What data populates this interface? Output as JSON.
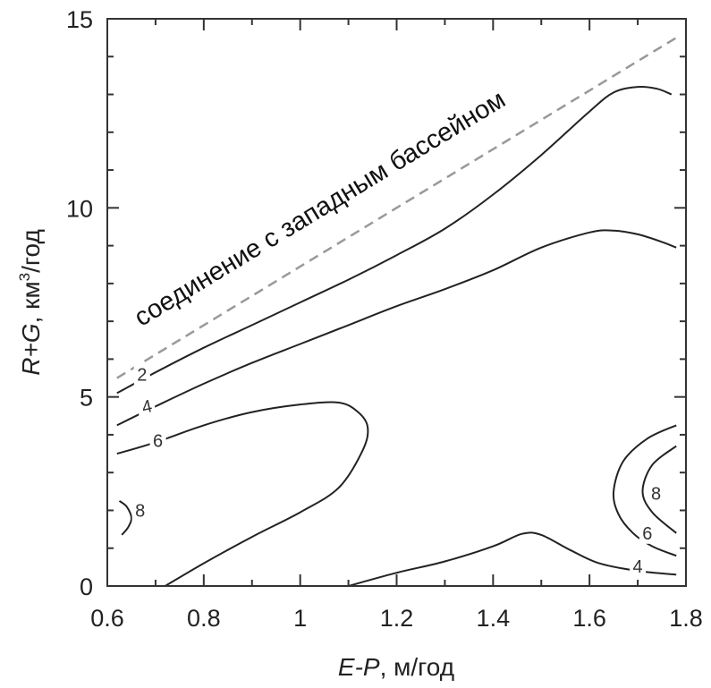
{
  "chart_data": {
    "type": "contour",
    "xlim": [
      0.6,
      1.8
    ],
    "ylim": [
      0,
      15
    ],
    "x_ticks": [
      "0.6",
      "0.8",
      "1",
      "1.2",
      "1.4",
      "1.6",
      "1.8"
    ],
    "y_ticks": [
      "0",
      "5",
      "10",
      "15"
    ],
    "x_minor_step": 0.1,
    "y_minor_step": 1,
    "xlabel": {
      "var": "E-P",
      "unit": ", м/год"
    },
    "ylabel": {
      "var": "R+G",
      "unit_pre": ", км",
      "unit_sup": "3",
      "unit_post": "/год"
    },
    "annotation": {
      "text": "соединение с западным бассейном",
      "line_x": [
        0.62,
        1.78
      ],
      "line_y": [
        5.5,
        14.5
      ],
      "style": "dashed",
      "color": "#999999"
    },
    "contours": [
      {
        "level": "2",
        "points": [
          [
            0.62,
            5.1
          ],
          [
            0.7,
            5.65
          ],
          [
            0.8,
            6.3
          ],
          [
            0.9,
            6.9
          ],
          [
            1.0,
            7.5
          ],
          [
            1.1,
            8.1
          ],
          [
            1.2,
            8.75
          ],
          [
            1.3,
            9.45
          ],
          [
            1.4,
            10.35
          ],
          [
            1.5,
            11.4
          ],
          [
            1.6,
            12.55
          ],
          [
            1.65,
            13.05
          ],
          [
            1.7,
            13.2
          ],
          [
            1.74,
            13.15
          ],
          [
            1.77,
            13.0
          ]
        ],
        "label": {
          "text": "2",
          "x": 0.672,
          "y": 5.6
        }
      },
      {
        "level": "4",
        "points": [
          [
            0.62,
            4.25
          ],
          [
            0.7,
            4.75
          ],
          [
            0.8,
            5.35
          ],
          [
            0.9,
            5.9
          ],
          [
            1.0,
            6.4
          ],
          [
            1.1,
            6.9
          ],
          [
            1.2,
            7.4
          ],
          [
            1.3,
            7.85
          ],
          [
            1.4,
            8.35
          ],
          [
            1.5,
            8.95
          ],
          [
            1.6,
            9.35
          ],
          [
            1.65,
            9.4
          ],
          [
            1.7,
            9.3
          ],
          [
            1.75,
            9.1
          ],
          [
            1.78,
            8.95
          ]
        ],
        "label": {
          "text": "4",
          "x": 0.682,
          "y": 4.75
        },
        "label_rotation": -13
      },
      {
        "level": "6",
        "points": [
          [
            0.62,
            3.5
          ],
          [
            0.7,
            3.8
          ],
          [
            0.8,
            4.25
          ],
          [
            0.9,
            4.6
          ],
          [
            1.0,
            4.8
          ],
          [
            1.08,
            4.85
          ],
          [
            1.12,
            4.6
          ],
          [
            1.14,
            4.2
          ],
          [
            1.13,
            3.6
          ],
          [
            1.08,
            2.6
          ],
          [
            1.0,
            1.95
          ],
          [
            0.9,
            1.3
          ],
          [
            0.8,
            0.6
          ],
          [
            0.72,
            0.0
          ]
        ],
        "label": {
          "text": "6",
          "x": 0.705,
          "y": 3.85
        }
      },
      {
        "level": "4",
        "points": [
          [
            1.1,
            0.0
          ],
          [
            1.2,
            0.35
          ],
          [
            1.3,
            0.65
          ],
          [
            1.4,
            1.05
          ],
          [
            1.46,
            1.38
          ],
          [
            1.5,
            1.35
          ],
          [
            1.56,
            0.95
          ],
          [
            1.62,
            0.6
          ],
          [
            1.7,
            0.4
          ],
          [
            1.78,
            0.3
          ]
        ],
        "label": {
          "text": "4",
          "x": 1.7,
          "y": 0.52
        }
      },
      {
        "level": "6",
        "points": [
          [
            1.78,
            4.25
          ],
          [
            1.72,
            3.9
          ],
          [
            1.67,
            3.3
          ],
          [
            1.65,
            2.5
          ],
          [
            1.66,
            1.9
          ],
          [
            1.69,
            1.4
          ],
          [
            1.73,
            1.05
          ],
          [
            1.78,
            0.8
          ]
        ],
        "label": {
          "text": "6",
          "x": 1.72,
          "y": 1.4
        }
      },
      {
        "level": "8",
        "points": [
          [
            1.78,
            3.7
          ],
          [
            1.73,
            3.2
          ],
          [
            1.71,
            2.5
          ],
          [
            1.73,
            1.95
          ],
          [
            1.78,
            1.4
          ]
        ],
        "label": {
          "text": "8",
          "x": 1.738,
          "y": 2.45
        }
      },
      {
        "level": "8",
        "points": [
          [
            0.625,
            2.25
          ],
          [
            0.64,
            2.1
          ],
          [
            0.65,
            1.8
          ],
          [
            0.643,
            1.55
          ],
          [
            0.63,
            1.35
          ]
        ],
        "label": {
          "text": "8",
          "x": 0.668,
          "y": 2.0
        }
      }
    ]
  }
}
